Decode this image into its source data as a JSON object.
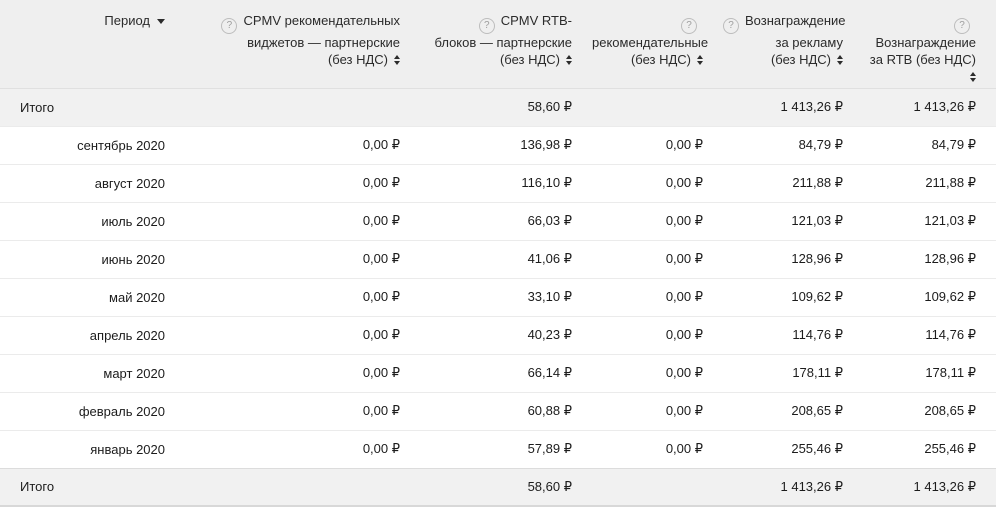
{
  "icons": {
    "help": "?"
  },
  "colors": {
    "header_bg": "#efefef",
    "total_row_bg": "#f1f1f1",
    "data_row_bg": "#ffffff",
    "row_border": "#ebebeb",
    "header_border": "#e0e0e0",
    "text": "#1c1c1c"
  },
  "table": {
    "columns": [
      {
        "key": "period",
        "label": "Период",
        "filter": true
      },
      {
        "key": "cpmv-widgets",
        "help": true,
        "help_own_line": false,
        "sortable": true,
        "sort_own_line": false,
        "lines": [
          "CPMV рекомендательных",
          "виджетов — партнерские",
          "(без НДС)"
        ]
      },
      {
        "key": "cpmv-rtb",
        "help": true,
        "help_own_line": false,
        "sortable": true,
        "sort_own_line": false,
        "lines": [
          "CPMV RTB-",
          "блоков — партнерские",
          "(без НДС)"
        ]
      },
      {
        "key": "recommend",
        "help": true,
        "help_own_line": true,
        "sortable": true,
        "sort_own_line": false,
        "lines": [
          "рекомендательные",
          "(без НДС)"
        ]
      },
      {
        "key": "reward-ads",
        "help": true,
        "help_own_line": false,
        "sortable": true,
        "sort_own_line": false,
        "lines": [
          "Вознаграждение",
          "за рекламу",
          "(без НДС)"
        ]
      },
      {
        "key": "reward-rtb",
        "help": true,
        "help_own_line": true,
        "sortable": true,
        "sort_own_line": true,
        "lines": [
          "Вознаграждение",
          "за RTB (без НДС)"
        ]
      }
    ],
    "total_top": {
      "label": "Итого",
      "values": [
        "",
        "58,60 ₽",
        "",
        "1 413,26 ₽",
        "1 413,26 ₽"
      ]
    },
    "rows": [
      {
        "period": "сентябрь 2020",
        "values": [
          "0,00 ₽",
          "136,98 ₽",
          "0,00 ₽",
          "84,79 ₽",
          "84,79 ₽"
        ]
      },
      {
        "period": "август 2020",
        "values": [
          "0,00 ₽",
          "116,10 ₽",
          "0,00 ₽",
          "211,88 ₽",
          "211,88 ₽"
        ]
      },
      {
        "period": "июль 2020",
        "values": [
          "0,00 ₽",
          "66,03 ₽",
          "0,00 ₽",
          "121,03 ₽",
          "121,03 ₽"
        ]
      },
      {
        "period": "июнь 2020",
        "values": [
          "0,00 ₽",
          "41,06 ₽",
          "0,00 ₽",
          "128,96 ₽",
          "128,96 ₽"
        ]
      },
      {
        "period": "май 2020",
        "values": [
          "0,00 ₽",
          "33,10 ₽",
          "0,00 ₽",
          "109,62 ₽",
          "109,62 ₽"
        ]
      },
      {
        "period": "апрель 2020",
        "values": [
          "0,00 ₽",
          "40,23 ₽",
          "0,00 ₽",
          "114,76 ₽",
          "114,76 ₽"
        ]
      },
      {
        "period": "март 2020",
        "values": [
          "0,00 ₽",
          "66,14 ₽",
          "0,00 ₽",
          "178,11 ₽",
          "178,11 ₽"
        ]
      },
      {
        "period": "февраль 2020",
        "values": [
          "0,00 ₽",
          "60,88 ₽",
          "0,00 ₽",
          "208,65 ₽",
          "208,65 ₽"
        ]
      },
      {
        "period": "январь 2020",
        "values": [
          "0,00 ₽",
          "57,89 ₽",
          "0,00 ₽",
          "255,46 ₽",
          "255,46 ₽"
        ]
      }
    ],
    "total_bottom": {
      "label": "Итого",
      "values": [
        "",
        "58,60 ₽",
        "",
        "1 413,26 ₽",
        "1 413,26 ₽"
      ]
    }
  }
}
